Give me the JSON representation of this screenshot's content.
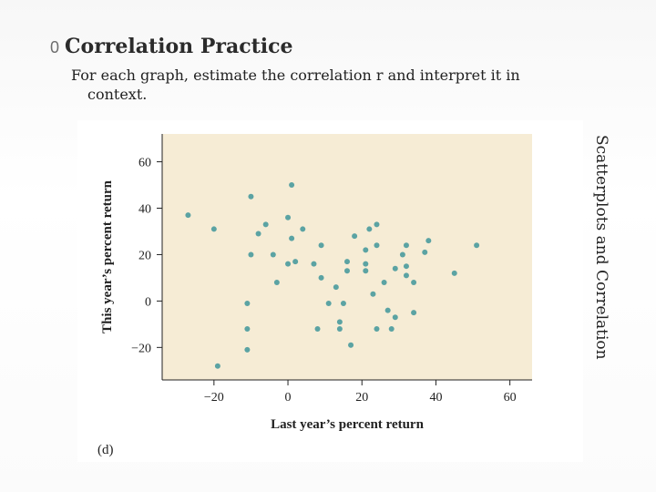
{
  "slide": {
    "bullet": "0",
    "title": "Correlation Practice",
    "subtitle_line1": "For each graph, estimate the correlation r and interpret it in",
    "subtitle_line2": "context.",
    "side_label": "Scatterplots and Correlation",
    "figure_label": "(d)"
  },
  "colors": {
    "plot_background": "#f6ecd5",
    "point": "#5ba3a3",
    "text": "#222222"
  },
  "chart_data": {
    "type": "scatter",
    "xlabel": "Last year’s percent return",
    "ylabel": "This year’s percent return",
    "xlim": [
      -34,
      66
    ],
    "ylim": [
      -34,
      72
    ],
    "xticks": [
      -20,
      0,
      20,
      40,
      60
    ],
    "yticks": [
      -20,
      0,
      20,
      40,
      60
    ],
    "xtick_labels": [
      "−20",
      "0",
      "20",
      "40",
      "60"
    ],
    "ytick_labels": [
      "−20",
      "0",
      "20",
      "40",
      "60"
    ],
    "grid": false,
    "points": [
      [
        -27,
        37
      ],
      [
        -20,
        31
      ],
      [
        -19,
        -28
      ],
      [
        -11,
        -1
      ],
      [
        -11,
        -12
      ],
      [
        -11,
        -21
      ],
      [
        -10,
        45
      ],
      [
        -10,
        20
      ],
      [
        -8,
        29
      ],
      [
        -6,
        33
      ],
      [
        -4,
        20
      ],
      [
        -3,
        8
      ],
      [
        0,
        36
      ],
      [
        0,
        16
      ],
      [
        1,
        50
      ],
      [
        1,
        27
      ],
      [
        2,
        17
      ],
      [
        4,
        31
      ],
      [
        7,
        16
      ],
      [
        8,
        -12
      ],
      [
        9,
        24
      ],
      [
        9,
        10
      ],
      [
        11,
        -1
      ],
      [
        13,
        6
      ],
      [
        14,
        -9
      ],
      [
        14,
        -12
      ],
      [
        15,
        -1
      ],
      [
        16,
        17
      ],
      [
        16,
        13
      ],
      [
        17,
        -19
      ],
      [
        18,
        28
      ],
      [
        21,
        22
      ],
      [
        21,
        16
      ],
      [
        21,
        13
      ],
      [
        22,
        31
      ],
      [
        23,
        3
      ],
      [
        24,
        33
      ],
      [
        24,
        24
      ],
      [
        24,
        -12
      ],
      [
        26,
        8
      ],
      [
        27,
        -4
      ],
      [
        28,
        -12
      ],
      [
        29,
        -7
      ],
      [
        29,
        14
      ],
      [
        31,
        20
      ],
      [
        32,
        24
      ],
      [
        32,
        15
      ],
      [
        32,
        11
      ],
      [
        34,
        8
      ],
      [
        34,
        -5
      ],
      [
        37,
        21
      ],
      [
        38,
        26
      ],
      [
        45,
        12
      ],
      [
        51,
        24
      ]
    ]
  }
}
